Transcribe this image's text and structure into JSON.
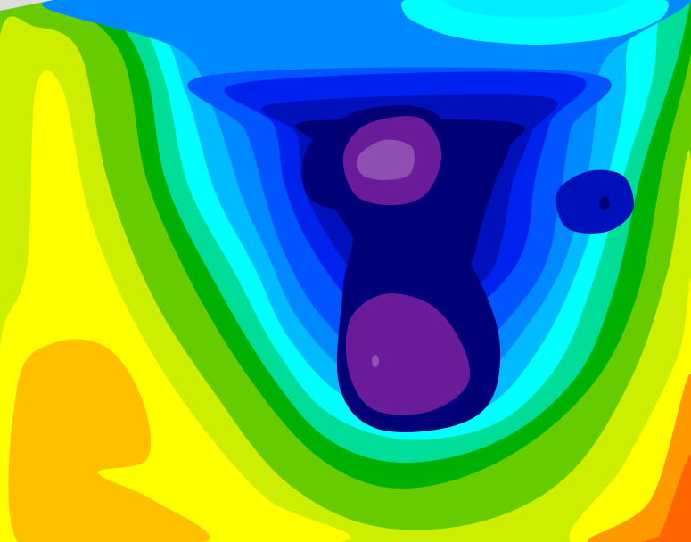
{
  "field": {
    "type": "filled-contour",
    "background_color": "#ffff00",
    "outer_levels": [
      "#66cc00",
      "#ccee00"
    ],
    "high_region_colors": {
      "yellow": "#ffff00",
      "orange_yellow": "#ffc000",
      "orange": "#ff9900",
      "dark_orange": "#ff6600"
    },
    "low_levels": [
      "#00b000",
      "#00dd99",
      "#00ffff",
      "#00bbff",
      "#0088ff",
      "#0055ff",
      "#0022ee",
      "#0011bb",
      "#000077"
    ],
    "minimum_colors": {
      "purple": "#6a1b9a",
      "light_purple": "#8e4fb0"
    },
    "top_edge_color": "#00eeff"
  }
}
